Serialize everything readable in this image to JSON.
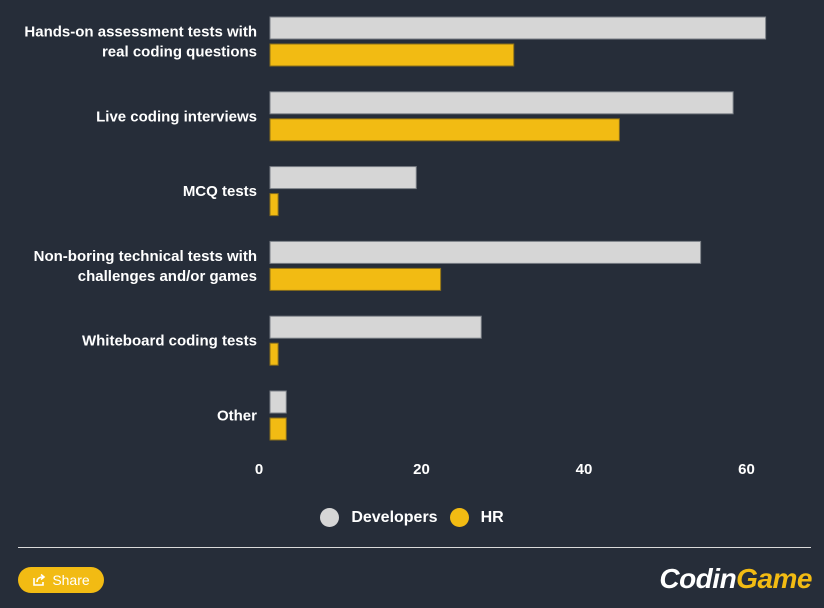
{
  "chart_data": {
    "type": "bar",
    "orientation": "horizontal",
    "title": "",
    "xlabel": "",
    "ylabel": "",
    "categories": [
      [
        "Hands-on assessment tests with",
        "real coding questions"
      ],
      [
        "Live coding interviews"
      ],
      [
        "MCQ tests"
      ],
      [
        "Non-boring technical tests with",
        "challenges and/or games"
      ],
      [
        "Whiteboard coding tests"
      ],
      [
        "Other"
      ]
    ],
    "series": [
      {
        "name": "Developers",
        "color": "#d6d6d6",
        "values": [
          61,
          57,
          18,
          53,
          26,
          2
        ]
      },
      {
        "name": "HR",
        "color": "#f2bb13",
        "values": [
          30,
          43,
          1,
          21,
          1,
          2
        ]
      }
    ],
    "xlim": [
      0,
      68
    ],
    "xticks": [
      0,
      20,
      40,
      60
    ],
    "grid": false,
    "legend": "bottom-center"
  },
  "legend": {
    "items": [
      {
        "label": "Developers",
        "color": "#d6d6d6"
      },
      {
        "label": "HR",
        "color": "#f2bb13"
      }
    ]
  },
  "footer": {
    "share_label": "Share",
    "logo_part1": "Codin",
    "logo_part2": "Game"
  },
  "colors": {
    "background": "#262d39",
    "accent": "#f2bb13"
  }
}
